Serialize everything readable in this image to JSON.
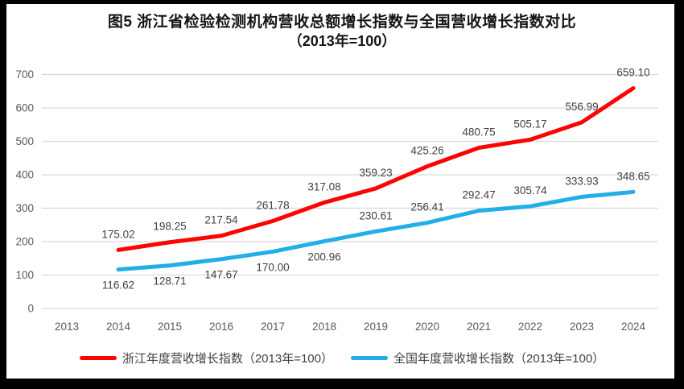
{
  "figure": {
    "title": "图5  浙江省检验检测机构营收总额增长指数与全国营收增长指数对比",
    "subtitle": "（2013年=100）"
  },
  "chart_data": {
    "type": "line",
    "categories": [
      "2013",
      "2014",
      "2015",
      "2016",
      "2017",
      "2018",
      "2019",
      "2020",
      "2021",
      "2022",
      "2023",
      "2024"
    ],
    "series": [
      {
        "name": "浙江年度营收增长指数（2013年=100）",
        "color": "#FB0402",
        "values": [
          null,
          175.02,
          198.25,
          217.54,
          261.78,
          317.08,
          359.23,
          425.26,
          480.75,
          505.17,
          556.99,
          659.1
        ],
        "label_side": [
          null,
          "above",
          "above",
          "above",
          "above",
          "above",
          "above",
          "above",
          "above",
          "above",
          "above",
          "above"
        ]
      },
      {
        "name": "全国年度营收增长指数（2013年=100）",
        "color": "#22AEE6",
        "values": [
          null,
          116.62,
          128.71,
          147.67,
          170.0,
          200.96,
          230.61,
          256.41,
          292.47,
          305.74,
          333.93,
          348.65
        ],
        "label_side": [
          null,
          "below",
          "below",
          "below",
          "below",
          "below",
          "above",
          "above",
          "above",
          "above",
          "above",
          "above"
        ]
      }
    ],
    "title": "图5  浙江省检验检测机构营收总额增长指数与全国营收增长指数对比（2013年=100）",
    "xlabel": "",
    "ylabel": "",
    "ylim": [
      0,
      700
    ],
    "ytick_step": 100,
    "grid": true,
    "legend_position": "bottom",
    "label_decimals": 2
  },
  "colors": {
    "grid": "#D9D9D9",
    "axis_text": "#595959",
    "data_label": "#404040",
    "frame": "#000000",
    "background": "#FFFFFF"
  }
}
